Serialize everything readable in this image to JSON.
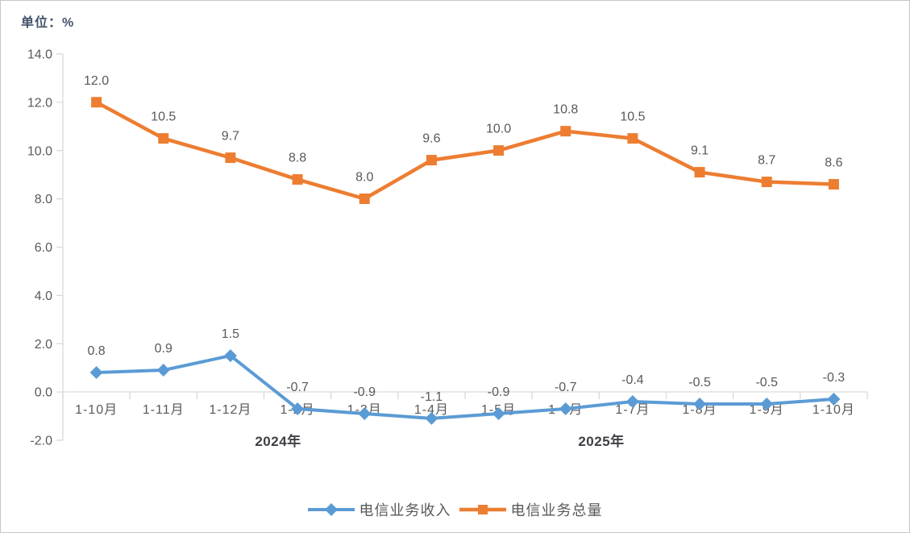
{
  "unit": {
    "label": "单位：%"
  },
  "colors": {
    "revenue_blue": "#5B9BD5",
    "volume_orange": "#ED7D31",
    "axis_gray": "#D9D9D9",
    "text_gray": "#595959"
  },
  "chart_data": {
    "type": "line",
    "title": "",
    "unit": "单位：%",
    "categories": [
      "1-10月",
      "1-11月",
      "1-12月",
      "1-2月",
      "1-3月",
      "1-4月",
      "1-5月",
      "1-6月",
      "1-7月",
      "1-8月",
      "1-9月",
      "1-10月"
    ],
    "year_groups": [
      {
        "label": "2024年"
      },
      {
        "label": "2025年"
      }
    ],
    "series": [
      {
        "name": "电信业务收入",
        "marker": "diamond",
        "color": "#5B9BD5",
        "values": [
          0.8,
          0.9,
          1.5,
          -0.7,
          -0.9,
          -1.1,
          -0.9,
          -0.7,
          -0.4,
          -0.5,
          -0.5,
          -0.3
        ]
      },
      {
        "name": "电信业务总量",
        "marker": "square",
        "color": "#ED7D31",
        "values": [
          12.0,
          10.5,
          9.7,
          8.8,
          8.0,
          9.6,
          10.0,
          10.8,
          10.5,
          9.1,
          8.7,
          8.6
        ]
      }
    ],
    "ylim": [
      -2.0,
      14.0
    ],
    "ytick_step": 2.0,
    "ytick_labels": [
      "14.0",
      "12.0",
      "10.0",
      "8.0",
      "6.0",
      "4.0",
      "2.0",
      "0.0",
      "-2.0"
    ],
    "grid": false,
    "data_labels": true,
    "legend_position": "bottom"
  }
}
